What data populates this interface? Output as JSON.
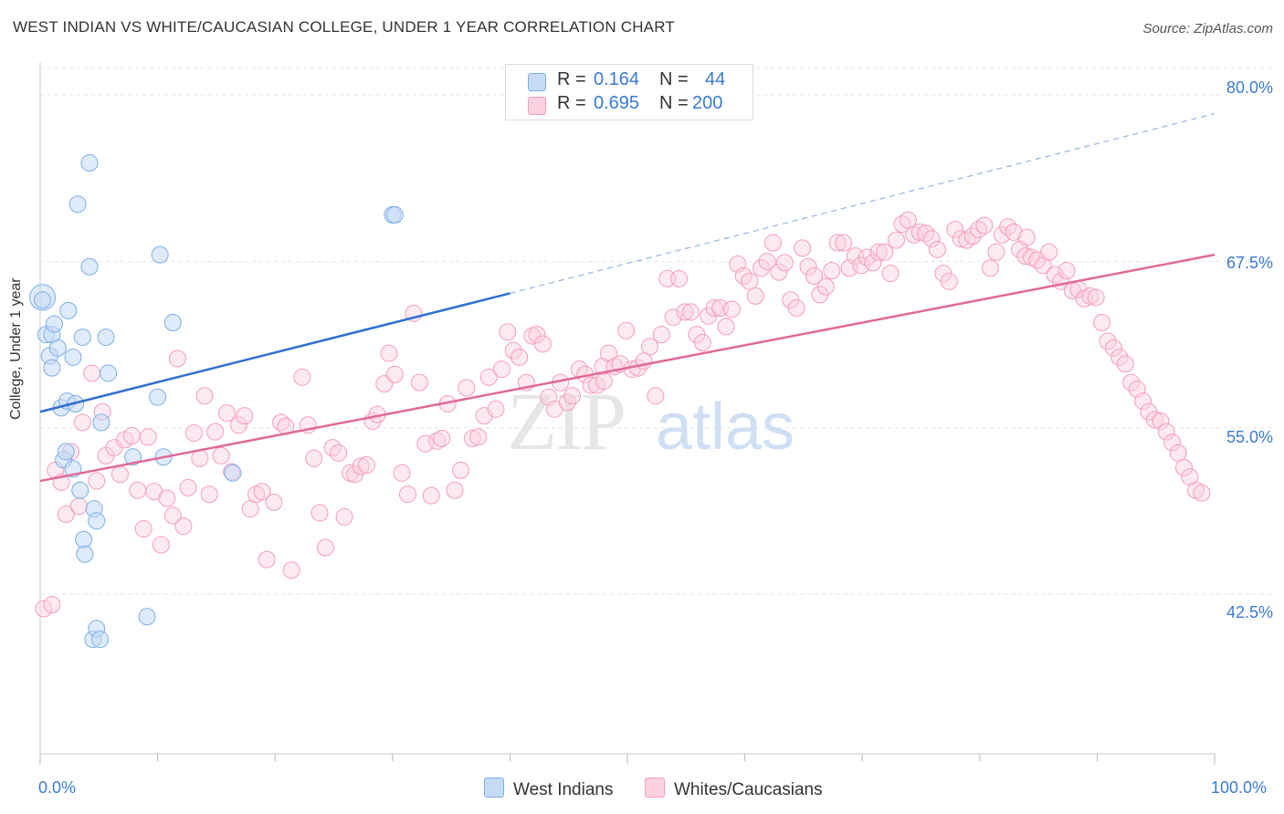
{
  "title": "WEST INDIAN VS WHITE/CAUCASIAN COLLEGE, UNDER 1 YEAR CORRELATION CHART",
  "source": "Source: ZipAtlas.com",
  "watermark": {
    "zip": "ZIP",
    "atlas": "atlas"
  },
  "legend": {
    "r_label": "R =",
    "n_label": "N =",
    "rows": [
      {
        "name": "West Indians",
        "r": "0.164",
        "n": "44",
        "color": "#7aaee8"
      },
      {
        "name": "Whites/Caucasians",
        "r": "0.695",
        "n": "200",
        "color": "#f59cbb"
      }
    ]
  },
  "bottom_legend": [
    "West Indians",
    "Whites/Caucasians"
  ],
  "chart_data": {
    "type": "scatter",
    "title": "WEST INDIAN VS WHITE/CAUCASIAN COLLEGE, UNDER 1 YEAR CORRELATION CHART",
    "xlabel": "",
    "ylabel": "College, Under 1 year",
    "xlim": [
      0,
      100
    ],
    "ylim": [
      30.5,
      82
    ],
    "x_tick_labels": [
      "0.0%",
      "100.0%"
    ],
    "y_ticks": [
      42.5,
      55.0,
      67.5,
      80.0
    ],
    "y_tick_labels": [
      "42.5%",
      "55.0%",
      "67.5%",
      "80.0%"
    ],
    "grid": true,
    "series": [
      {
        "name": "West Indians",
        "color": "#7aaee8",
        "line_color": "#2f6fcf",
        "trend": {
          "x0": 0,
          "y0": 56.2,
          "x1": 40,
          "y1": 65.1,
          "dashed_to_x": 100,
          "dashed_to_y": 78.6
        },
        "points": [
          [
            0.2,
            64.8
          ],
          [
            0.2,
            64.6
          ],
          [
            0.5,
            62.0
          ],
          [
            0.8,
            60.4
          ],
          [
            1.0,
            59.5
          ],
          [
            1.0,
            62.0
          ],
          [
            1.2,
            62.8
          ],
          [
            1.5,
            61.0
          ],
          [
            1.8,
            56.5
          ],
          [
            2.0,
            52.6
          ],
          [
            2.2,
            53.2
          ],
          [
            2.3,
            57.0
          ],
          [
            2.4,
            63.8
          ],
          [
            2.8,
            60.3
          ],
          [
            2.8,
            51.9
          ],
          [
            3.0,
            56.8
          ],
          [
            3.2,
            71.8
          ],
          [
            3.4,
            50.3
          ],
          [
            3.6,
            61.8
          ],
          [
            3.7,
            46.6
          ],
          [
            3.8,
            45.5
          ],
          [
            4.2,
            67.1
          ],
          [
            4.2,
            74.9
          ],
          [
            4.5,
            39.1
          ],
          [
            4.6,
            48.9
          ],
          [
            4.8,
            48.0
          ],
          [
            4.8,
            39.9
          ],
          [
            5.1,
            39.1
          ],
          [
            5.2,
            55.4
          ],
          [
            5.6,
            61.8
          ],
          [
            5.8,
            59.1
          ],
          [
            7.9,
            52.8
          ],
          [
            9.1,
            40.8
          ],
          [
            10.0,
            57.3
          ],
          [
            10.2,
            68.0
          ],
          [
            10.5,
            52.8
          ],
          [
            11.3,
            62.9
          ],
          [
            16.4,
            51.6
          ],
          [
            30.0,
            71.0
          ],
          [
            30.2,
            71.0
          ]
        ]
      },
      {
        "name": "Whites/Caucasians",
        "color": "#f59cbb",
        "line_color": "#e0699a",
        "trend": {
          "x0": 0,
          "y0": 51.0,
          "x1": 100,
          "y1": 68.0
        },
        "points": [
          [
            0.3,
            41.4
          ],
          [
            1.0,
            41.7
          ],
          [
            1.3,
            51.8
          ],
          [
            1.8,
            50.9
          ],
          [
            2.2,
            48.5
          ],
          [
            2.6,
            53.2
          ],
          [
            3.3,
            49.1
          ],
          [
            3.6,
            55.4
          ],
          [
            4.4,
            59.1
          ],
          [
            4.8,
            51.0
          ],
          [
            5.3,
            56.2
          ],
          [
            5.6,
            52.9
          ],
          [
            6.3,
            53.5
          ],
          [
            6.8,
            51.5
          ],
          [
            7.2,
            54.1
          ],
          [
            7.8,
            54.4
          ],
          [
            8.3,
            50.3
          ],
          [
            8.8,
            47.4
          ],
          [
            9.2,
            54.3
          ],
          [
            9.7,
            50.2
          ],
          [
            10.3,
            46.2
          ],
          [
            10.8,
            49.7
          ],
          [
            11.3,
            48.4
          ],
          [
            11.7,
            60.2
          ],
          [
            12.2,
            47.6
          ],
          [
            12.6,
            50.5
          ],
          [
            13.1,
            54.6
          ],
          [
            13.6,
            52.7
          ],
          [
            14.0,
            57.4
          ],
          [
            14.4,
            50.0
          ],
          [
            14.9,
            54.7
          ],
          [
            15.4,
            52.9
          ],
          [
            15.9,
            56.1
          ],
          [
            16.3,
            51.7
          ],
          [
            16.9,
            55.2
          ],
          [
            17.4,
            55.9
          ],
          [
            17.9,
            48.9
          ],
          [
            18.4,
            50.0
          ],
          [
            18.9,
            50.2
          ],
          [
            19.3,
            45.1
          ],
          [
            19.9,
            49.4
          ],
          [
            20.5,
            55.4
          ],
          [
            20.9,
            55.1
          ],
          [
            21.4,
            44.3
          ],
          [
            22.3,
            58.8
          ],
          [
            22.8,
            55.2
          ],
          [
            23.3,
            52.7
          ],
          [
            23.8,
            48.6
          ],
          [
            24.3,
            46.0
          ],
          [
            24.9,
            53.5
          ],
          [
            25.4,
            53.1
          ],
          [
            25.9,
            48.3
          ],
          [
            26.4,
            51.6
          ],
          [
            26.8,
            51.5
          ],
          [
            27.3,
            52.1
          ],
          [
            27.8,
            52.2
          ],
          [
            28.3,
            55.5
          ],
          [
            28.7,
            56.0
          ],
          [
            29.3,
            58.3
          ],
          [
            29.7,
            60.6
          ],
          [
            30.2,
            59.0
          ],
          [
            30.8,
            51.6
          ],
          [
            31.3,
            50.0
          ],
          [
            31.8,
            63.6
          ],
          [
            32.3,
            58.4
          ],
          [
            32.8,
            53.8
          ],
          [
            33.3,
            49.9
          ],
          [
            33.8,
            54.0
          ],
          [
            34.2,
            54.2
          ],
          [
            34.7,
            56.8
          ],
          [
            35.3,
            50.3
          ],
          [
            35.8,
            51.8
          ],
          [
            36.3,
            58.0
          ],
          [
            36.8,
            54.2
          ],
          [
            37.3,
            54.3
          ],
          [
            37.8,
            55.9
          ],
          [
            38.2,
            58.8
          ],
          [
            38.8,
            56.4
          ],
          [
            39.3,
            59.4
          ],
          [
            39.8,
            62.2
          ],
          [
            40.3,
            60.8
          ],
          [
            40.8,
            60.3
          ],
          [
            41.4,
            58.4
          ],
          [
            41.9,
            61.9
          ],
          [
            42.3,
            62.0
          ],
          [
            42.8,
            61.3
          ],
          [
            43.3,
            57.3
          ],
          [
            43.8,
            56.4
          ],
          [
            44.3,
            58.4
          ],
          [
            44.9,
            56.9
          ],
          [
            45.3,
            57.4
          ],
          [
            45.9,
            59.4
          ],
          [
            46.4,
            59.0
          ],
          [
            46.9,
            58.2
          ],
          [
            47.4,
            58.2
          ],
          [
            47.9,
            59.6
          ],
          [
            48.4,
            60.6
          ],
          [
            48.9,
            59.6
          ],
          [
            49.4,
            59.8
          ],
          [
            49.9,
            62.3
          ],
          [
            50.4,
            59.4
          ],
          [
            50.9,
            59.5
          ],
          [
            51.4,
            60.0
          ],
          [
            51.9,
            61.1
          ],
          [
            52.4,
            57.4
          ],
          [
            52.9,
            62.0
          ],
          [
            53.4,
            66.2
          ],
          [
            53.9,
            63.3
          ],
          [
            54.4,
            66.2
          ],
          [
            54.9,
            63.7
          ],
          [
            55.4,
            63.7
          ],
          [
            55.9,
            62.0
          ],
          [
            56.4,
            61.4
          ],
          [
            56.9,
            63.4
          ],
          [
            57.4,
            64.0
          ],
          [
            57.9,
            64.0
          ],
          [
            58.4,
            62.6
          ],
          [
            58.9,
            63.9
          ],
          [
            59.4,
            67.3
          ],
          [
            59.9,
            66.4
          ],
          [
            60.4,
            66.0
          ],
          [
            60.9,
            64.9
          ],
          [
            61.4,
            67.0
          ],
          [
            61.9,
            67.5
          ],
          [
            62.4,
            68.9
          ],
          [
            62.9,
            66.7
          ],
          [
            63.4,
            67.4
          ],
          [
            63.9,
            64.6
          ],
          [
            64.4,
            64.0
          ],
          [
            64.9,
            68.5
          ],
          [
            65.4,
            67.1
          ],
          [
            65.9,
            66.4
          ],
          [
            66.4,
            65.0
          ],
          [
            66.9,
            65.6
          ],
          [
            67.4,
            66.8
          ],
          [
            67.9,
            68.9
          ],
          [
            68.4,
            68.9
          ],
          [
            68.9,
            67.0
          ],
          [
            69.4,
            67.9
          ],
          [
            69.9,
            67.2
          ],
          [
            70.4,
            67.8
          ],
          [
            70.9,
            67.4
          ],
          [
            71.4,
            68.2
          ],
          [
            71.9,
            68.2
          ],
          [
            72.4,
            66.6
          ],
          [
            72.9,
            69.1
          ],
          [
            73.4,
            70.3
          ],
          [
            73.9,
            70.6
          ],
          [
            74.4,
            69.5
          ],
          [
            74.9,
            69.7
          ],
          [
            75.4,
            69.6
          ],
          [
            75.9,
            69.2
          ],
          [
            76.4,
            68.4
          ],
          [
            76.9,
            66.6
          ],
          [
            77.4,
            66.0
          ],
          [
            77.9,
            69.9
          ],
          [
            78.4,
            69.2
          ],
          [
            78.9,
            69.1
          ],
          [
            79.4,
            69.4
          ],
          [
            79.9,
            69.9
          ],
          [
            80.4,
            70.2
          ],
          [
            80.9,
            67.0
          ],
          [
            81.4,
            68.2
          ],
          [
            81.9,
            69.5
          ],
          [
            82.4,
            70.1
          ],
          [
            82.9,
            69.7
          ],
          [
            83.4,
            68.4
          ],
          [
            83.9,
            67.9
          ],
          [
            84.4,
            67.8
          ],
          [
            84.9,
            67.6
          ],
          [
            85.4,
            67.2
          ],
          [
            85.9,
            68.2
          ],
          [
            86.4,
            66.5
          ],
          [
            86.9,
            66.0
          ],
          [
            87.4,
            66.8
          ],
          [
            87.9,
            65.3
          ],
          [
            88.4,
            65.4
          ],
          [
            88.9,
            64.7
          ],
          [
            89.4,
            64.9
          ],
          [
            89.9,
            64.8
          ],
          [
            90.4,
            62.9
          ],
          [
            90.9,
            61.5
          ],
          [
            91.4,
            61.0
          ],
          [
            91.9,
            60.3
          ],
          [
            92.4,
            59.8
          ],
          [
            92.9,
            58.4
          ],
          [
            93.4,
            57.9
          ],
          [
            93.9,
            57.0
          ],
          [
            94.4,
            56.2
          ],
          [
            94.9,
            55.6
          ],
          [
            95.4,
            55.5
          ],
          [
            95.9,
            54.7
          ],
          [
            96.4,
            53.9
          ],
          [
            96.9,
            53.1
          ],
          [
            97.4,
            52.0
          ],
          [
            97.9,
            51.3
          ],
          [
            98.4,
            50.3
          ],
          [
            98.9,
            50.1
          ],
          [
            48.0,
            58.5
          ],
          [
            84.0,
            69.3
          ]
        ]
      }
    ]
  }
}
